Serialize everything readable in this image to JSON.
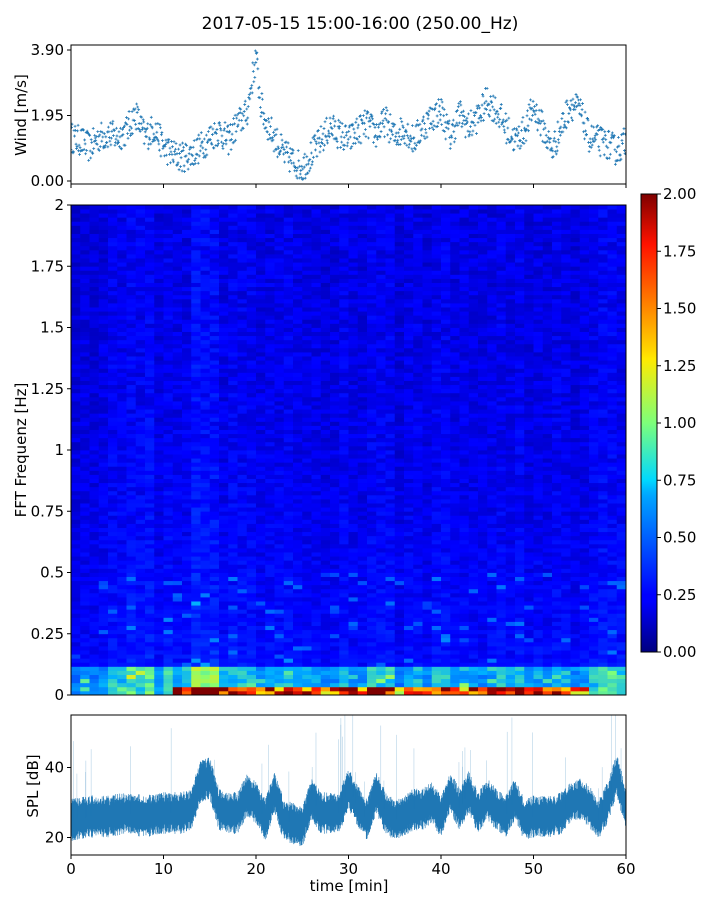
{
  "title": "2017-05-15 15:00-16:00 (250.00_Hz)",
  "chart_data": [
    {
      "type": "scatter",
      "name": "wind",
      "ylabel": "Wind [m/s]",
      "ylim": [
        0,
        3.9
      ],
      "yticks": [
        "3.90",
        "1.95",
        "0.00"
      ],
      "xlim": [
        0,
        60
      ],
      "marker_color": "#1f77b4",
      "points": [
        [
          0,
          1.3
        ],
        [
          1,
          1.2
        ],
        [
          2,
          1.0
        ],
        [
          3,
          1.3
        ],
        [
          4,
          1.4
        ],
        [
          5,
          1.3
        ],
        [
          6,
          1.5
        ],
        [
          7,
          2.0
        ],
        [
          8,
          1.3
        ],
        [
          9,
          1.6
        ],
        [
          10,
          1.0
        ],
        [
          11,
          0.8
        ],
        [
          12,
          0.7
        ],
        [
          13,
          0.8
        ],
        [
          14,
          1.0
        ],
        [
          15,
          1.3
        ],
        [
          16,
          1.5
        ],
        [
          17,
          1.2
        ],
        [
          18,
          1.7
        ],
        [
          19,
          2.0
        ],
        [
          20,
          3.7
        ],
        [
          20.5,
          2.3
        ],
        [
          21,
          1.8
        ],
        [
          22,
          1.3
        ],
        [
          23,
          0.8
        ],
        [
          24,
          0.6
        ],
        [
          25,
          0.4
        ],
        [
          26,
          0.8
        ],
        [
          27,
          1.2
        ],
        [
          28,
          1.6
        ],
        [
          29,
          1.4
        ],
        [
          30,
          1.2
        ],
        [
          31,
          1.5
        ],
        [
          32,
          1.7
        ],
        [
          33,
          1.4
        ],
        [
          34,
          1.8
        ],
        [
          35,
          1.3
        ],
        [
          36,
          1.6
        ],
        [
          37,
          1.2
        ],
        [
          38,
          1.6
        ],
        [
          39,
          1.9
        ],
        [
          40,
          2.1
        ],
        [
          41,
          1.3
        ],
        [
          42,
          2.0
        ],
        [
          43,
          1.6
        ],
        [
          44,
          1.9
        ],
        [
          45,
          2.4
        ],
        [
          46,
          2.1
        ],
        [
          47,
          1.6
        ],
        [
          48,
          1.2
        ],
        [
          49,
          1.5
        ],
        [
          50,
          2.2
        ],
        [
          51,
          1.6
        ],
        [
          52,
          0.9
        ],
        [
          53,
          1.6
        ],
        [
          54,
          2.3
        ],
        [
          55,
          2.1
        ],
        [
          56,
          1.3
        ],
        [
          57,
          1.2
        ],
        [
          58,
          1.1
        ],
        [
          59,
          0.9
        ],
        [
          60,
          1.2
        ]
      ]
    },
    {
      "type": "heatmap",
      "name": "spectrogram",
      "ylabel": "FFT Frequenz [Hz]",
      "ylim": [
        0,
        2
      ],
      "yticks": [
        "0",
        "0.25",
        "0.5",
        "0.75",
        "1",
        "1.25",
        "1.5",
        "1.75",
        "2"
      ],
      "xlim": [
        0,
        60
      ],
      "colormap": "jet",
      "colorbar": {
        "min": 0,
        "max": 2,
        "ticks": [
          "0.00",
          "0.25",
          "0.50",
          "0.75",
          "1.00",
          "1.25",
          "1.50",
          "1.75",
          "2.00"
        ]
      }
    },
    {
      "type": "line",
      "name": "spl",
      "ylabel": "SPL [dB]",
      "xlabel": "time [min]",
      "ylim": [
        15,
        55
      ],
      "yticks": [
        "40",
        "20"
      ],
      "xlim": [
        0,
        60
      ],
      "xticks": [
        "0",
        "10",
        "20",
        "30",
        "40",
        "50",
        "60"
      ],
      "line_color": "#1f77b4",
      "series": [
        [
          0,
          25
        ],
        [
          2,
          26
        ],
        [
          4,
          26
        ],
        [
          6,
          27
        ],
        [
          8,
          26
        ],
        [
          10,
          27
        ],
        [
          12,
          27
        ],
        [
          13,
          28
        ],
        [
          14,
          36
        ],
        [
          15,
          37
        ],
        [
          16,
          28
        ],
        [
          17,
          27
        ],
        [
          18,
          27
        ],
        [
          19,
          32
        ],
        [
          20,
          30
        ],
        [
          21,
          25
        ],
        [
          22,
          33
        ],
        [
          23,
          25
        ],
        [
          24,
          24
        ],
        [
          25,
          23
        ],
        [
          26,
          31
        ],
        [
          27,
          27
        ],
        [
          28,
          27
        ],
        [
          29,
          27
        ],
        [
          30,
          34
        ],
        [
          31,
          29
        ],
        [
          32,
          25
        ],
        [
          33,
          33
        ],
        [
          34,
          27
        ],
        [
          35,
          25
        ],
        [
          36,
          26
        ],
        [
          37,
          28
        ],
        [
          38,
          28
        ],
        [
          39,
          30
        ],
        [
          40,
          26
        ],
        [
          41,
          33
        ],
        [
          42,
          28
        ],
        [
          43,
          33
        ],
        [
          44,
          27
        ],
        [
          45,
          31
        ],
        [
          46,
          28
        ],
        [
          47,
          26
        ],
        [
          48,
          31
        ],
        [
          49,
          25
        ],
        [
          50,
          26
        ],
        [
          51,
          26
        ],
        [
          52,
          26
        ],
        [
          53,
          27
        ],
        [
          54,
          30
        ],
        [
          55,
          31
        ],
        [
          56,
          29
        ],
        [
          57,
          25
        ],
        [
          58,
          30
        ],
        [
          59,
          38
        ],
        [
          60,
          28
        ]
      ]
    }
  ]
}
